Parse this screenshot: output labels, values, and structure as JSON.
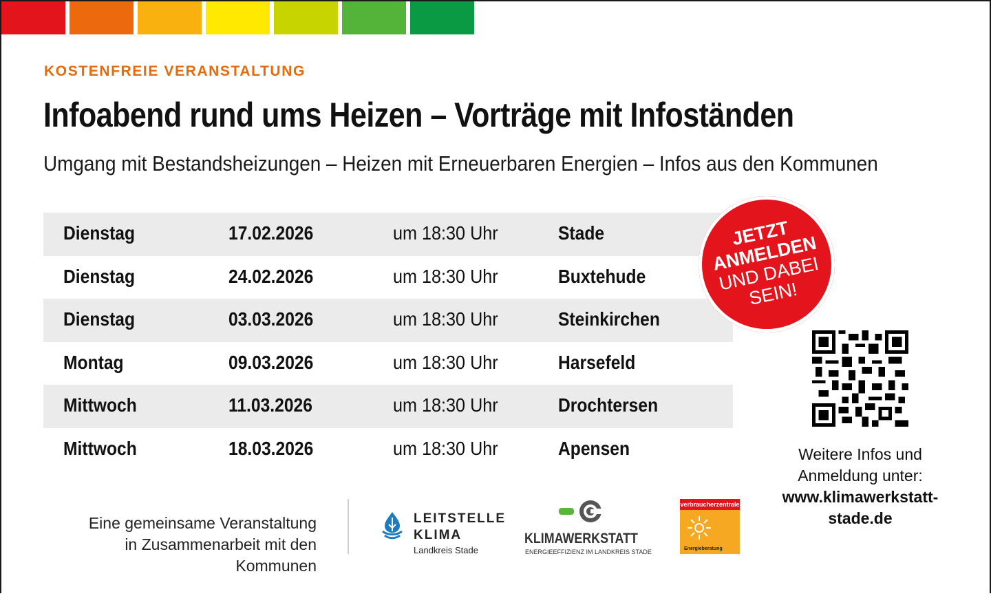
{
  "colors": {
    "energy_scale": [
      "#e3141c",
      "#ec6a0d",
      "#f8b10f",
      "#ffe900",
      "#c8d400",
      "#54b43a",
      "#0a9a43"
    ],
    "accent_orange": "#e26b10",
    "stamp_red": "#e3141c",
    "row_shade": "#ebebeb"
  },
  "header": {
    "eyebrow": "KOSTENFREIE VERANSTALTUNG",
    "title": "Infoabend rund ums Heizen – Vorträge mit Infoständen",
    "subtitle": "Umgang mit Bestandsheizungen – Heizen mit Erneuerbaren Energien – Infos aus den Kommunen"
  },
  "events": [
    {
      "day": "Dienstag",
      "date": "17.02.2026",
      "time": "um 18:30 Uhr",
      "place": "Stade"
    },
    {
      "day": "Dienstag",
      "date": "24.02.2026",
      "time": "um 18:30 Uhr",
      "place": "Buxtehude"
    },
    {
      "day": "Dienstag",
      "date": "03.03.2026",
      "time": "um 18:30 Uhr",
      "place": "Steinkirchen"
    },
    {
      "day": "Montag",
      "date": "09.03.2026",
      "time": "um 18:30 Uhr",
      "place": "Harsefeld"
    },
    {
      "day": "Mittwoch",
      "date": "11.03.2026",
      "time": "um 18:30 Uhr",
      "place": "Drochtersen"
    },
    {
      "day": "Mittwoch",
      "date": "18.03.2026",
      "time": "um 18:30 Uhr",
      "place": "Apensen"
    }
  ],
  "stamp": {
    "line1": "JETZT",
    "line2": "ANMELDEN",
    "line3": "UND DABEI",
    "line4": "SEIN!"
  },
  "qr": {
    "icon": "qr-code-icon"
  },
  "info": {
    "line1": "Weitere Infos und",
    "line2": "Anmeldung unter:",
    "url_line1": "www.klimawerkstatt-",
    "url_line2": "stade.de"
  },
  "footer": {
    "line1": "Eine gemeinsame Veranstaltung",
    "line2": "in Zusammenarbeit mit den Kommunen"
  },
  "logos": {
    "leitstelle": {
      "line1": "LEITSTELLE",
      "line2": "KLIMA",
      "sub": "Landkreis Stade",
      "icon": "water-drop-icon"
    },
    "klimawerkstatt": {
      "name": "KLIMAWERKSTATT",
      "sub": "ENERGIEEFFIZIENZ IM LANDKREIS STADE",
      "icon": "plug-c-icon"
    },
    "verbraucherzentrale": {
      "top": "verbraucherzentrale",
      "bottom": "Energieberatung",
      "icon": "sun-icon"
    }
  }
}
